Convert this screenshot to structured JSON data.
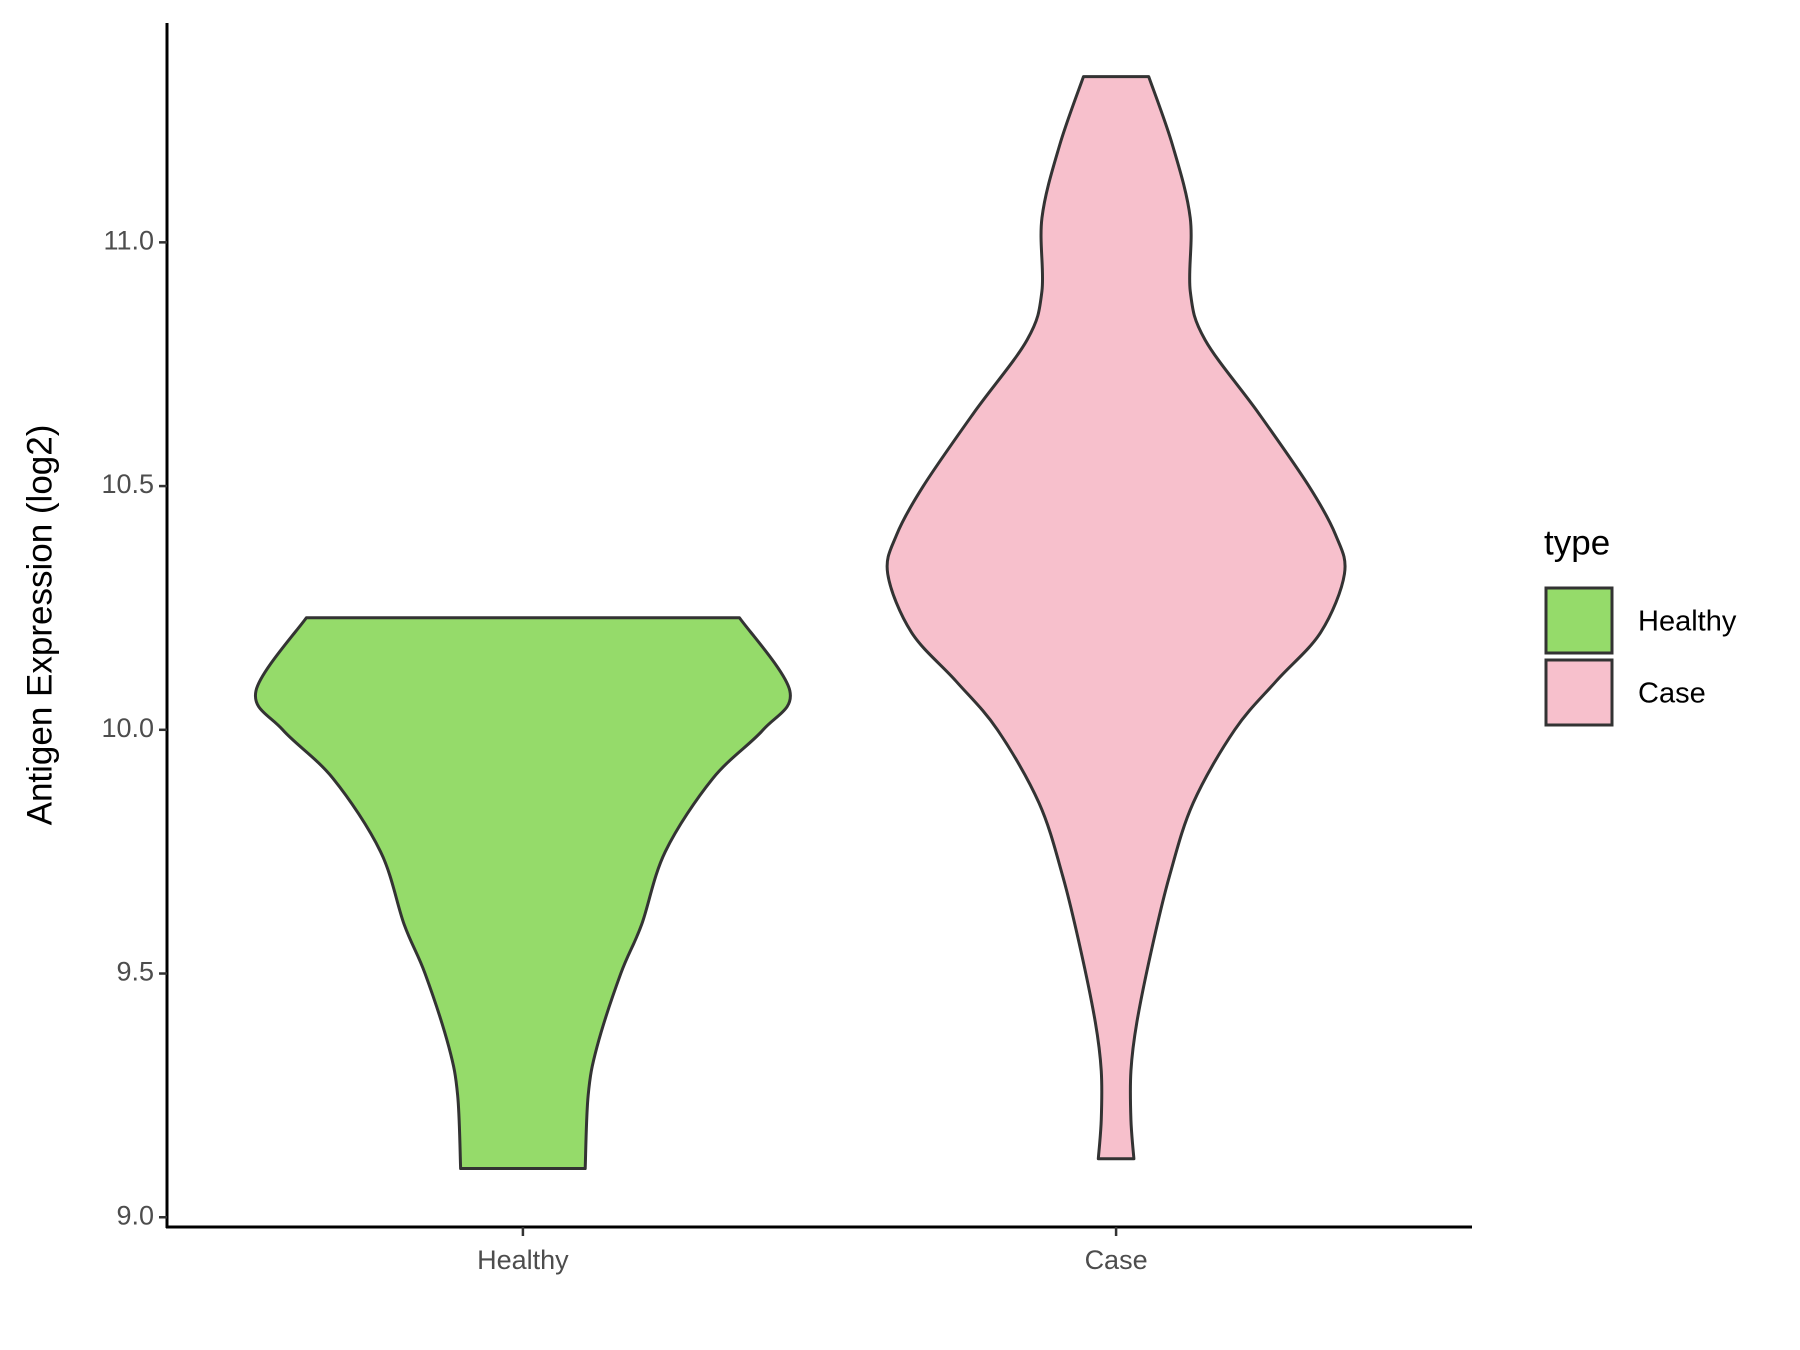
{
  "chart_data": {
    "type": "violin",
    "y_label": "Antigen Expression (log2)",
    "categories": [
      "Healthy",
      "Case"
    ],
    "series": [
      {
        "name": "Healthy",
        "color": "#95db6a",
        "y": [
          10.23,
          10.08,
          10.0,
          9.9,
          9.75,
          9.6,
          9.5,
          9.35,
          9.25,
          9.1
        ],
        "widths": [
          0.73,
          0.9,
          0.81,
          0.64,
          0.48,
          0.4,
          0.33,
          0.25,
          0.22,
          0.21
        ]
      },
      {
        "name": "Case",
        "color": "#f7c0cc",
        "y": [
          11.34,
          11.2,
          11.05,
          10.9,
          10.8,
          10.65,
          10.5,
          10.4,
          10.32,
          10.2,
          10.1,
          10.0,
          9.85,
          9.7,
          9.55,
          9.4,
          9.3,
          9.2,
          9.12
        ],
        "widths": [
          0.11,
          0.19,
          0.25,
          0.25,
          0.3,
          0.48,
          0.65,
          0.74,
          0.77,
          0.69,
          0.54,
          0.4,
          0.26,
          0.18,
          0.12,
          0.07,
          0.05,
          0.05,
          0.06
        ]
      }
    ],
    "ylim": [
      8.98,
      11.45
    ],
    "yticks": [
      {
        "value": 9,
        "label": "9.0"
      },
      9.5,
      {
        "value": 10,
        "label": "10.0"
      },
      10.5,
      {
        "value": 11,
        "label": "11.0"
      }
    ],
    "legend_title": "type",
    "legend": "right"
  }
}
